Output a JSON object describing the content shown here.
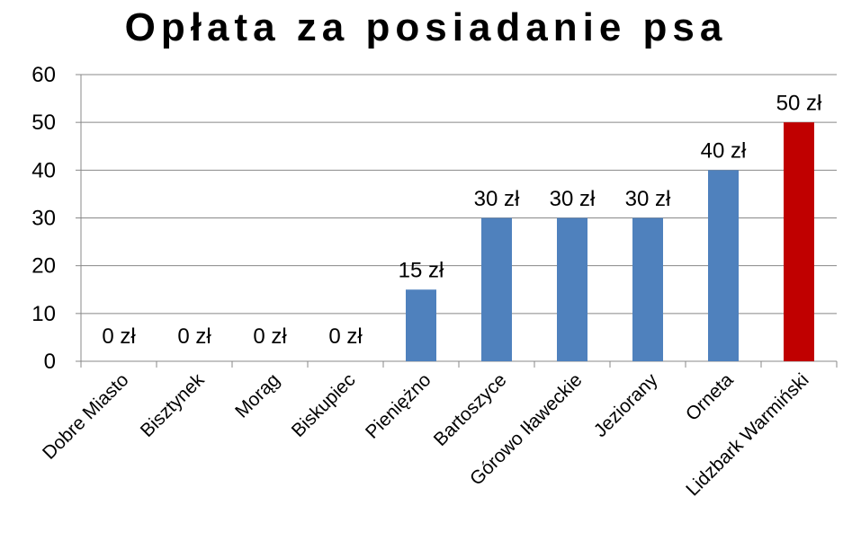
{
  "chart_data": {
    "type": "bar",
    "title": "Opłata za posiadanie psa",
    "categories": [
      "Dobre Miasto",
      "Bisztynek",
      "Morąg",
      "Biskupiec",
      "Pieniężno",
      "Bartoszyce",
      "Górowo Iławeckie",
      "Jeziorany",
      "Orneta",
      "Lidzbark Warmiński"
    ],
    "values": [
      0,
      0,
      0,
      0,
      15,
      30,
      30,
      30,
      40,
      50
    ],
    "data_labels": [
      "0 zł",
      "0 zł",
      "0 zł",
      "0 zł",
      "15 zł",
      "30 zł",
      "30 zł",
      "30 zł",
      "40 zł",
      "50 zł"
    ],
    "bar_colors": [
      "#4f81bd",
      "#4f81bd",
      "#4f81bd",
      "#4f81bd",
      "#4f81bd",
      "#4f81bd",
      "#4f81bd",
      "#4f81bd",
      "#4f81bd",
      "#c00000"
    ],
    "yticks": [
      0,
      10,
      20,
      30,
      40,
      50,
      60
    ],
    "ylim": [
      0,
      60
    ],
    "xlabel": "",
    "ylabel": "",
    "grid": true,
    "legend": "none"
  }
}
